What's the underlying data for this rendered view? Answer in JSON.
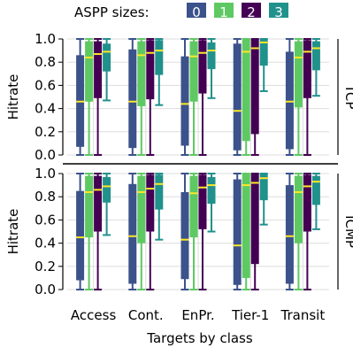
{
  "chart_data": {
    "type": "boxplot",
    "legend": {
      "title": "ASPP sizes:",
      "placement": "top",
      "entries": [
        {
          "label": "0",
          "color": "#3b528b"
        },
        {
          "label": "1",
          "color": "#5ec962"
        },
        {
          "label": "2",
          "color": "#440154"
        },
        {
          "label": "3",
          "color": "#21918c"
        }
      ]
    },
    "median_color": "#fde725",
    "xlabel": "Targets by class",
    "ylabel": "Hitrate",
    "ylim": [
      0.0,
      1.0
    ],
    "yticks": [
      "0.0",
      "0.2",
      "0.4",
      "0.6",
      "0.8",
      "1.0"
    ],
    "grid": true,
    "categories": [
      "Access",
      "Cont.",
      "EnPr.",
      "Tier-1",
      "Transit"
    ],
    "panels": [
      {
        "label": "TCP",
        "series": [
          {
            "name": "0",
            "boxes": [
              {
                "whislo": 0.0,
                "q1": 0.07,
                "med": 0.46,
                "q3": 0.86,
                "whishi": 1.0
              },
              {
                "whislo": 0.0,
                "q1": 0.06,
                "med": 0.46,
                "q3": 0.91,
                "whishi": 1.0
              },
              {
                "whislo": 0.0,
                "q1": 0.08,
                "med": 0.44,
                "q3": 0.85,
                "whishi": 1.0
              },
              {
                "whislo": 0.0,
                "q1": 0.04,
                "med": 0.38,
                "q3": 0.96,
                "whishi": 1.0
              },
              {
                "whislo": 0.0,
                "q1": 0.05,
                "med": 0.46,
                "q3": 0.89,
                "whishi": 1.0
              }
            ]
          },
          {
            "name": "1",
            "boxes": [
              {
                "whislo": 0.0,
                "q1": 0.46,
                "med": 0.84,
                "q3": 0.98,
                "whishi": 1.0
              },
              {
                "whislo": 0.0,
                "q1": 0.42,
                "med": 0.86,
                "q3": 0.98,
                "whishi": 1.0
              },
              {
                "whislo": 0.0,
                "q1": 0.46,
                "med": 0.85,
                "q3": 0.98,
                "whishi": 1.0
              },
              {
                "whislo": 0.0,
                "q1": 0.12,
                "med": 0.89,
                "q3": 1.0,
                "whishi": 1.0
              },
              {
                "whislo": 0.0,
                "q1": 0.41,
                "med": 0.84,
                "q3": 0.98,
                "whishi": 1.0
              }
            ]
          },
          {
            "name": "2",
            "boxes": [
              {
                "whislo": 0.0,
                "q1": 0.49,
                "med": 0.87,
                "q3": 0.98,
                "whishi": 1.0
              },
              {
                "whislo": 0.0,
                "q1": 0.48,
                "med": 0.88,
                "q3": 0.99,
                "whishi": 1.0
              },
              {
                "whislo": 0.0,
                "q1": 0.53,
                "med": 0.88,
                "q3": 0.99,
                "whishi": 1.0
              },
              {
                "whislo": 0.0,
                "q1": 0.18,
                "med": 0.92,
                "q3": 1.0,
                "whishi": 1.0
              },
              {
                "whislo": 0.0,
                "q1": 0.49,
                "med": 0.89,
                "q3": 0.99,
                "whishi": 1.0
              }
            ]
          },
          {
            "name": "3",
            "boxes": [
              {
                "whislo": 0.47,
                "q1": 0.72,
                "med": 0.89,
                "q3": 0.96,
                "whishi": 1.0
              },
              {
                "whislo": 0.43,
                "q1": 0.69,
                "med": 0.9,
                "q3": 0.99,
                "whishi": 1.0
              },
              {
                "whislo": 0.49,
                "q1": 0.74,
                "med": 0.9,
                "q3": 0.97,
                "whishi": 1.0
              },
              {
                "whislo": 0.55,
                "q1": 0.77,
                "med": 0.97,
                "q3": 1.0,
                "whishi": 1.0
              },
              {
                "whislo": 0.51,
                "q1": 0.73,
                "med": 0.92,
                "q3": 0.98,
                "whishi": 1.0
              }
            ]
          }
        ]
      },
      {
        "label": "ICMP",
        "series": [
          {
            "name": "0",
            "boxes": [
              {
                "whislo": 0.0,
                "q1": 0.08,
                "med": 0.45,
                "q3": 0.85,
                "whishi": 1.0
              },
              {
                "whislo": 0.0,
                "q1": 0.05,
                "med": 0.46,
                "q3": 0.91,
                "whishi": 1.0
              },
              {
                "whislo": 0.0,
                "q1": 0.09,
                "med": 0.43,
                "q3": 0.84,
                "whishi": 1.0
              },
              {
                "whislo": 0.0,
                "q1": 0.04,
                "med": 0.38,
                "q3": 0.95,
                "whishi": 1.0
              },
              {
                "whislo": 0.0,
                "q1": 0.05,
                "med": 0.46,
                "q3": 0.9,
                "whishi": 1.0
              }
            ]
          },
          {
            "name": "1",
            "boxes": [
              {
                "whislo": 0.0,
                "q1": 0.45,
                "med": 0.84,
                "q3": 0.98,
                "whishi": 1.0
              },
              {
                "whislo": 0.0,
                "q1": 0.4,
                "med": 0.84,
                "q3": 0.98,
                "whishi": 1.0
              },
              {
                "whislo": 0.0,
                "q1": 0.45,
                "med": 0.83,
                "q3": 0.98,
                "whishi": 1.0
              },
              {
                "whislo": 0.0,
                "q1": 0.1,
                "med": 0.9,
                "q3": 1.0,
                "whishi": 1.0
              },
              {
                "whislo": 0.0,
                "q1": 0.4,
                "med": 0.84,
                "q3": 0.98,
                "whishi": 1.0
              }
            ]
          },
          {
            "name": "2",
            "boxes": [
              {
                "whislo": 0.0,
                "q1": 0.5,
                "med": 0.86,
                "q3": 0.98,
                "whishi": 1.0
              },
              {
                "whislo": 0.0,
                "q1": 0.5,
                "med": 0.87,
                "q3": 0.99,
                "whishi": 1.0
              },
              {
                "whislo": 0.0,
                "q1": 0.52,
                "med": 0.88,
                "q3": 0.99,
                "whishi": 1.0
              },
              {
                "whislo": 0.0,
                "q1": 0.22,
                "med": 0.92,
                "q3": 1.0,
                "whishi": 1.0
              },
              {
                "whislo": 0.0,
                "q1": 0.5,
                "med": 0.89,
                "q3": 0.99,
                "whishi": 1.0
              }
            ]
          },
          {
            "name": "3",
            "boxes": [
              {
                "whislo": 0.47,
                "q1": 0.75,
                "med": 0.89,
                "q3": 0.97,
                "whishi": 1.0
              },
              {
                "whislo": 0.43,
                "q1": 0.69,
                "med": 0.91,
                "q3": 0.99,
                "whishi": 1.0
              },
              {
                "whislo": 0.5,
                "q1": 0.74,
                "med": 0.9,
                "q3": 0.97,
                "whishi": 1.0
              },
              {
                "whislo": 0.56,
                "q1": 0.77,
                "med": 0.96,
                "q3": 1.0,
                "whishi": 1.0
              },
              {
                "whislo": 0.52,
                "q1": 0.73,
                "med": 0.93,
                "q3": 0.98,
                "whishi": 1.0
              }
            ]
          }
        ]
      }
    ]
  }
}
